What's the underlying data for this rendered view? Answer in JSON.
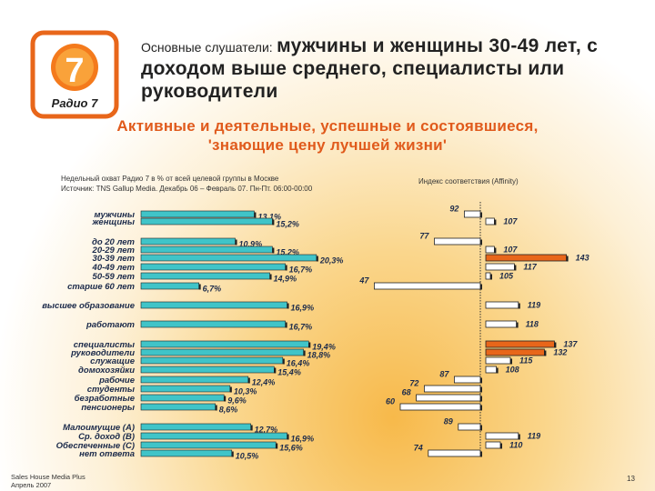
{
  "header": {
    "prefix": "Основные слушатели:",
    "title": "мужчины и женщины 30-49 лет, с доходом выше среднего, специалисты или руководители"
  },
  "logo": {
    "text": "Радио 7"
  },
  "slogan": {
    "line1": "Активные и деятельные, успешные и состоявшиеся,",
    "line2": "'знающие цену лучшей жизни'"
  },
  "source_note": {
    "line1": "Недельный охват Радио 7 в % от всей целевой группы в Москве",
    "line2": "Источник: TNS Gallup Media. Декабрь 06 – Февраль 07. Пн-Пт. 06:00-00:00"
  },
  "affinity_note": "Индекс соответствия (Affinity)",
  "footer": {
    "line1": "Sales House Media Plus",
    "line2": "Апрель 2007"
  },
  "page_number": "13",
  "colors": {
    "reach_bar": "#40c4c8",
    "affinity_high": "#e8661a",
    "affinity_normal": "#ffffff",
    "bar_outline": "#222222",
    "accent": "#e05a1c"
  },
  "chart_data": [
    {
      "type": "bar",
      "orientation": "horizontal",
      "title": "Недельный охват Радио 7 в % от всей целевой группы в Москве",
      "categories": [
        "мужчины",
        "женщины",
        "до 20 лет",
        "20-29 лет",
        "30-39 лет",
        "40-49 лет",
        "50-59 лет",
        "старше 60 лет",
        "высшее образование",
        "работают",
        "специалисты",
        "руководители",
        "служащие",
        "домохозяйки",
        "рабочие",
        "студенты",
        "безработные",
        "пенсионеры",
        "Малоимущие (А)",
        "Ср. доход (В)",
        "Обеспеченные (С)",
        "нет ответа"
      ],
      "values": [
        13.1,
        15.2,
        10.9,
        15.2,
        20.3,
        16.7,
        14.9,
        6.7,
        16.9,
        16.7,
        19.4,
        18.8,
        16.4,
        15.4,
        12.4,
        10.3,
        9.6,
        8.6,
        12.7,
        16.9,
        15.6,
        10.5
      ],
      "value_labels": [
        "13,1%",
        "15,2%",
        "10,9%",
        "15,2%",
        "20,3%",
        "16,7%",
        "14,9%",
        "6,7%",
        "16,9%",
        "16,7%",
        "19,4%",
        "18,8%",
        "16,4%",
        "15,4%",
        "12,4%",
        "10,3%",
        "9,6%",
        "8,6%",
        "12,7%",
        "16,9%",
        "15,6%",
        "10,5%"
      ],
      "unit": "%"
    },
    {
      "type": "bar",
      "orientation": "horizontal",
      "title": "Индекс соответствия (Affinity)",
      "baseline": 100,
      "categories": [
        "мужчины",
        "женщины",
        "до 20 лет",
        "20-29 лет",
        "30-39 лет",
        "40-49 лет",
        "50-59 лет",
        "старше 60 лет",
        "высшее образование",
        "работают",
        "специалисты",
        "руководители",
        "служащие",
        "домохозяйки",
        "рабочие",
        "студенты",
        "безработные",
        "пенсионеры",
        "Малоимущие (А)",
        "Ср. доход (В)",
        "Обеспеченные (С)",
        "нет ответа"
      ],
      "values": [
        92,
        107,
        77,
        107,
        143,
        117,
        105,
        47,
        119,
        118,
        137,
        132,
        115,
        108,
        87,
        72,
        68,
        60,
        89,
        119,
        110,
        74
      ],
      "highlighted": [
        "30-39 лет",
        "специалисты",
        "руководители"
      ]
    }
  ]
}
